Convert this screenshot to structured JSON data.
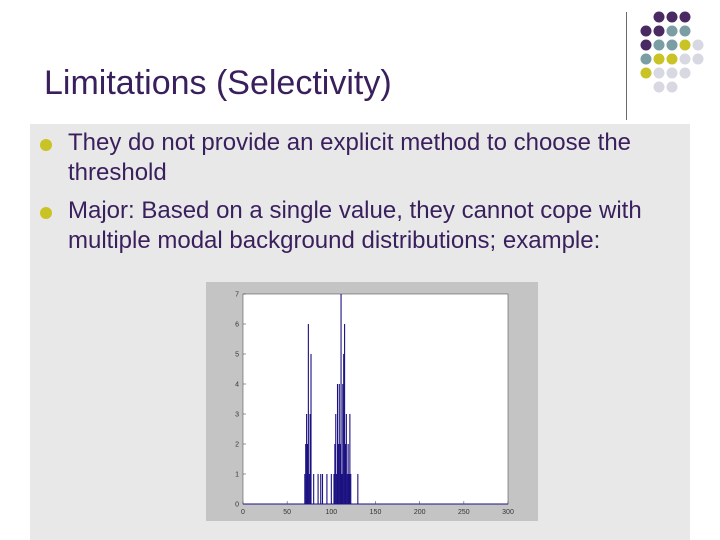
{
  "slide": {
    "title": "Limitations (Selectivity)",
    "bullets": [
      "They do not provide an explicit method to choose the threshold",
      "Major: Based on a single value, they cannot cope with multiple modal background distributions; example:"
    ]
  },
  "theme": {
    "title_color": "#3a1f5d",
    "bullet_color": "#c9c325",
    "panel_color": "#e8e8e8",
    "dot_colors": {
      "purple": "#4a2a63",
      "teal": "#7a9ea3",
      "olive": "#c9c325",
      "light": "#d8d8e2"
    }
  },
  "chart_data": {
    "type": "bar",
    "title": "",
    "xlabel": "",
    "ylabel": "",
    "xlim": [
      0,
      300
    ],
    "ylim": [
      0,
      7
    ],
    "xticks": [
      0,
      50,
      100,
      150,
      200,
      250,
      300
    ],
    "yticks": [
      0,
      1,
      2,
      3,
      4,
      5,
      6,
      7
    ],
    "bar_color": "#1a1080",
    "x": [
      70,
      71,
      72,
      73,
      74,
      75,
      76,
      77,
      80,
      85,
      88,
      90,
      95,
      100,
      103,
      104,
      105,
      106,
      107,
      108,
      109,
      110,
      111,
      112,
      113,
      114,
      115,
      116,
      117,
      118,
      119,
      120,
      121,
      122,
      130
    ],
    "values": [
      1,
      2,
      3,
      2,
      6,
      1,
      3,
      5,
      1,
      1,
      1,
      1,
      1,
      1,
      1,
      2,
      3,
      1,
      4,
      2,
      4,
      2,
      7,
      1,
      4,
      5,
      6,
      2,
      3,
      1,
      2,
      1,
      3,
      1,
      1
    ]
  }
}
